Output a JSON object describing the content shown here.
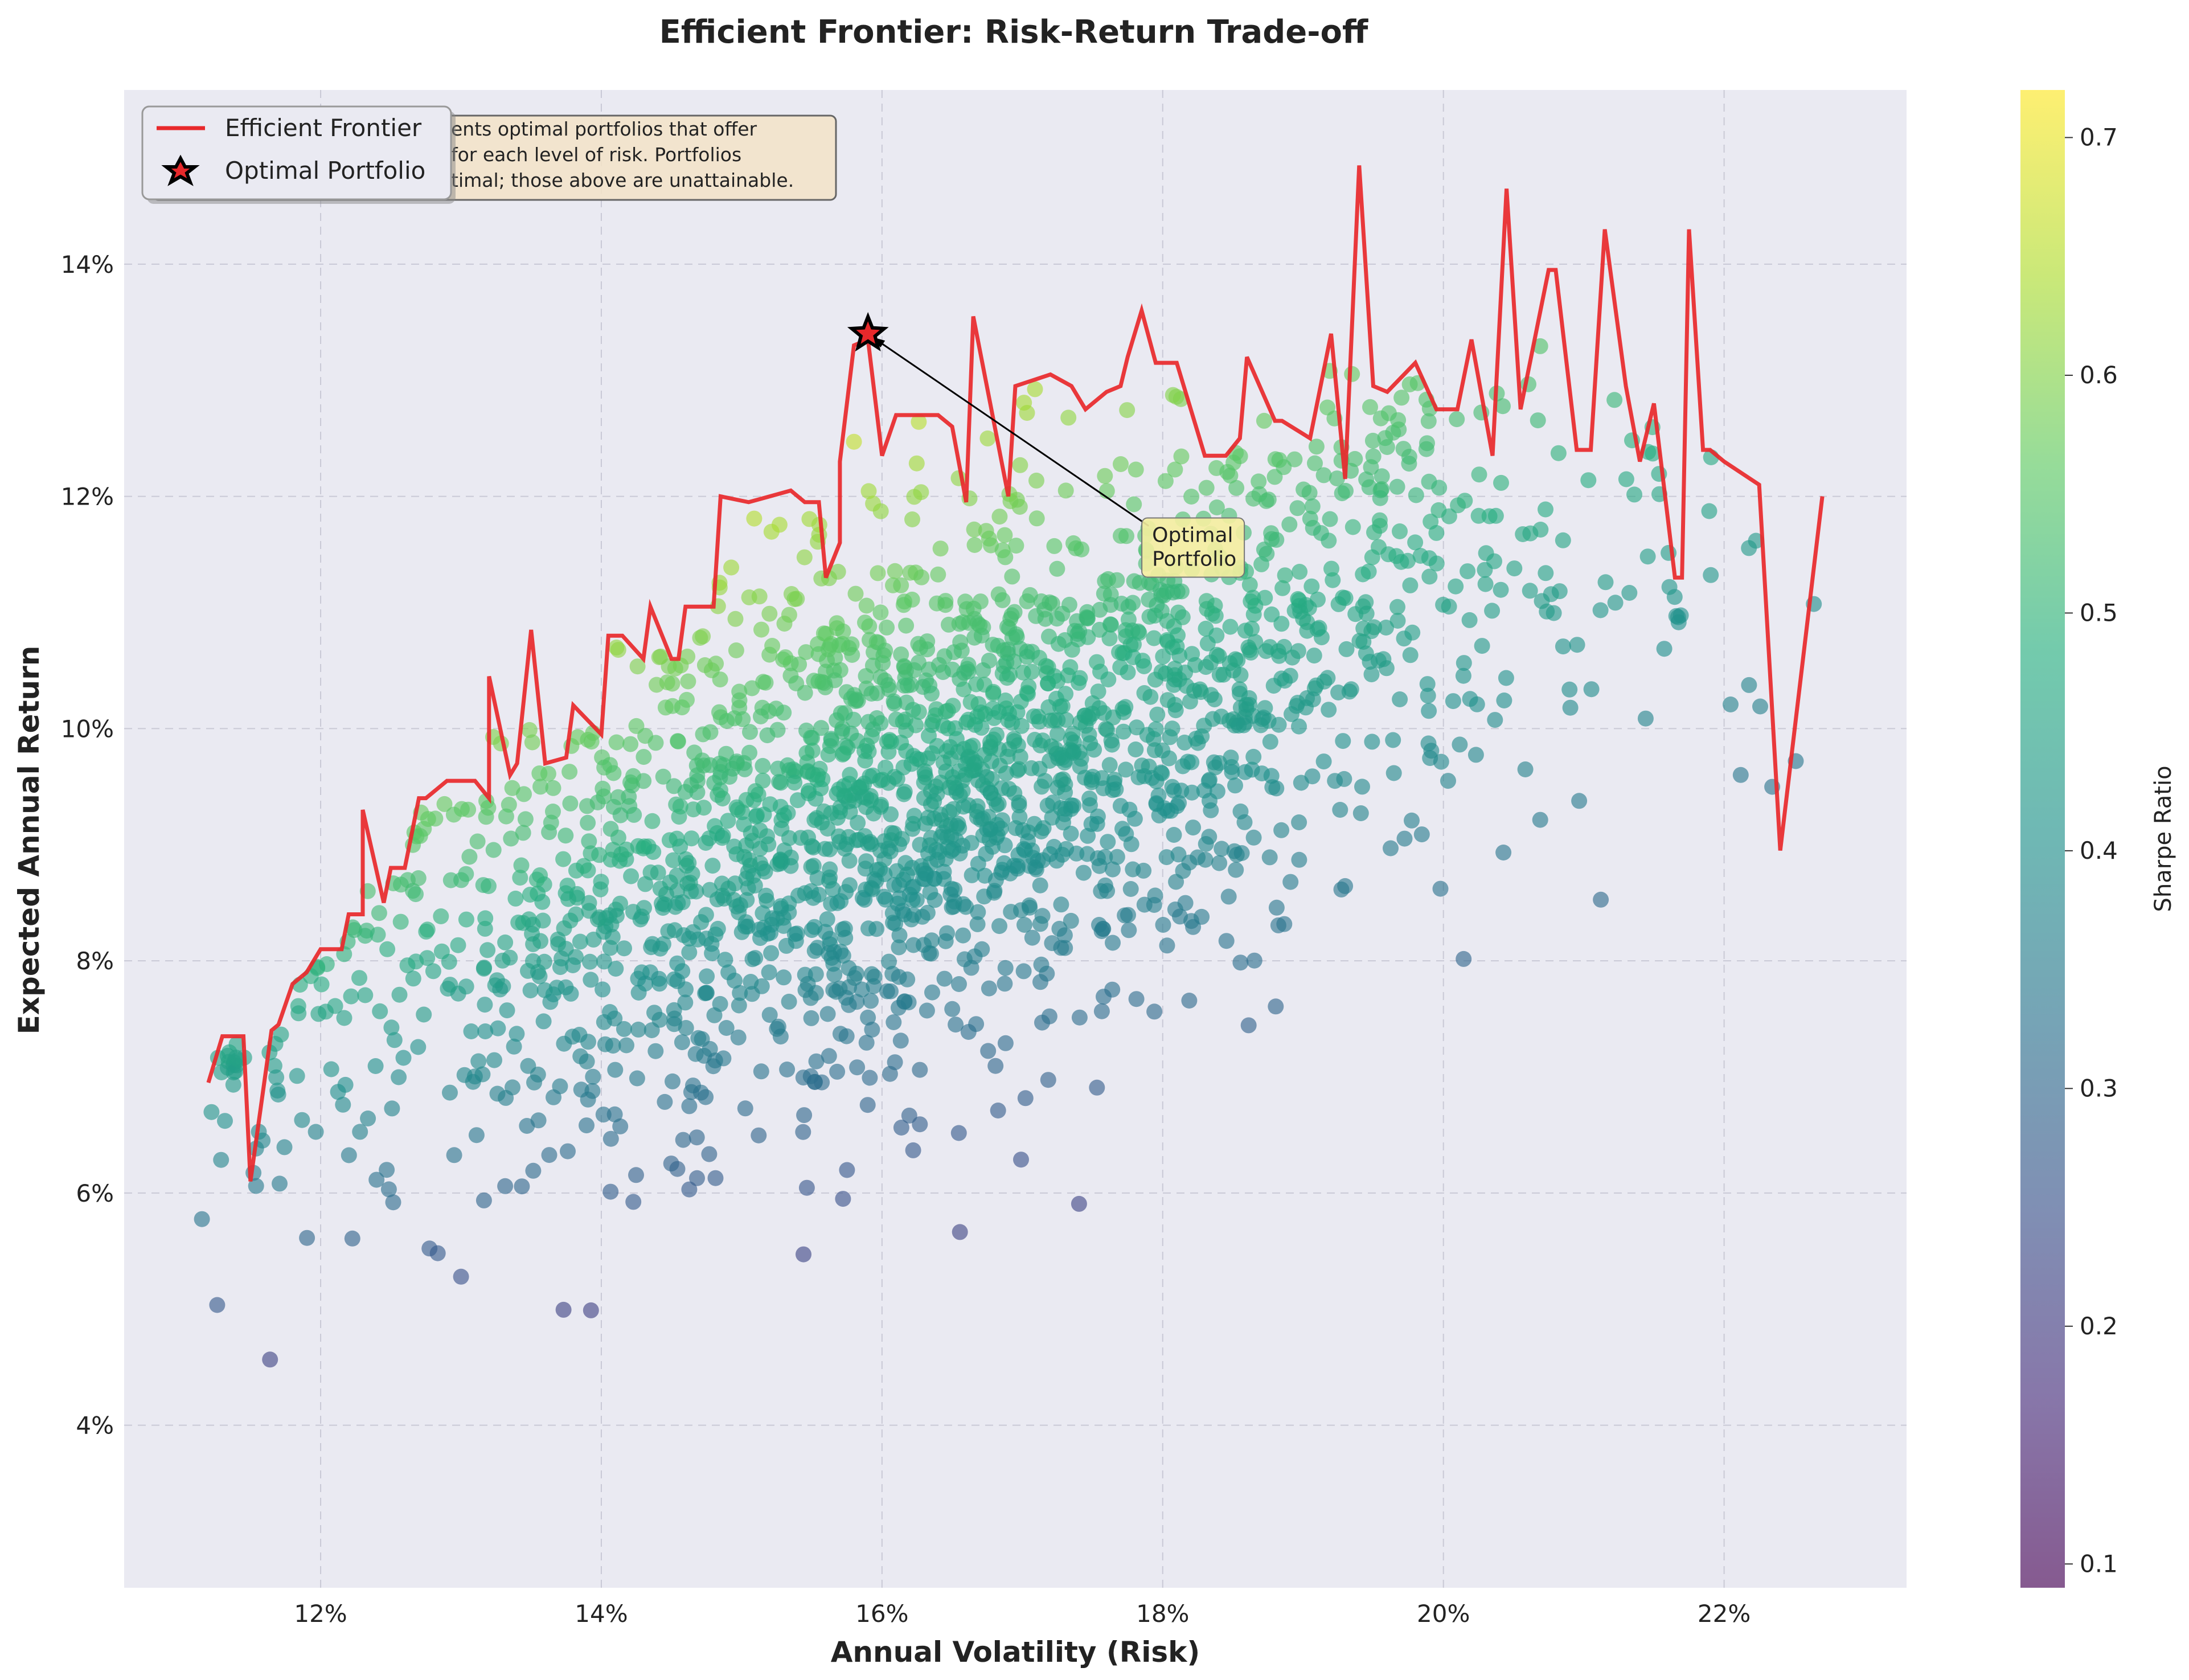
{
  "chart_data": {
    "type": "scatter",
    "title": "Efficient Frontier: Risk-Return Trade-off",
    "xlabel": "Annual Volatility (Risk)",
    "ylabel": "Expected Annual Return",
    "xlim": [
      10.6,
      23.3
    ],
    "ylim": [
      2.6,
      15.5
    ],
    "x_ticks": [
      "12%",
      "14%",
      "16%",
      "18%",
      "20%",
      "22%"
    ],
    "y_ticks": [
      "4%",
      "6%",
      "8%",
      "10%",
      "12%",
      "14%"
    ],
    "x_tick_values": [
      12,
      14,
      16,
      18,
      20,
      22
    ],
    "y_tick_values": [
      4,
      6,
      8,
      10,
      12,
      14
    ],
    "grid": true,
    "colorbar": {
      "label": "Sharpe Ratio",
      "range": [
        0.09,
        0.72
      ],
      "ticks": [
        "0.1",
        "0.2",
        "0.3",
        "0.4",
        "0.5",
        "0.6",
        "0.7"
      ],
      "tick_values": [
        0.1,
        0.2,
        0.3,
        0.4,
        0.5,
        0.6,
        0.7
      ],
      "colormap": "viridis"
    },
    "legend": {
      "placement": "top-left",
      "entries": [
        {
          "label": "Efficient Frontier",
          "color": "#e8282b",
          "marker": "line"
        },
        {
          "label": "Optimal Portfolio",
          "color": "#e8282b",
          "marker": "star"
        }
      ]
    },
    "info_box": {
      "lines": [
        "ents optimal portfolios that offer",
        "for each level of risk. Portfolios",
        "timal; those above are unattainable."
      ]
    },
    "annotation": {
      "lines": [
        "Optimal",
        "Portfolio"
      ],
      "target": [
        15.9,
        13.4
      ],
      "text_at": [
        17.9,
        11.5
      ]
    },
    "optimal_portfolio": {
      "volatility": 15.9,
      "return": 13.4
    },
    "series": [
      {
        "name": "Efficient Frontier",
        "type": "line",
        "color": "#e8282b",
        "x": [
          11.2,
          11.3,
          11.45,
          11.5,
          11.65,
          11.7,
          11.8,
          11.9,
          12.0,
          12.05,
          12.15,
          12.2,
          12.3,
          12.3,
          12.45,
          12.5,
          12.6,
          12.7,
          12.75,
          12.9,
          13.1,
          13.2,
          13.2,
          13.35,
          13.4,
          13.5,
          13.6,
          13.75,
          13.8,
          14.0,
          14.05,
          14.15,
          14.3,
          14.35,
          14.5,
          14.55,
          14.6,
          14.8,
          14.85,
          15.05,
          15.2,
          15.35,
          15.45,
          15.55,
          15.6,
          15.7,
          15.7,
          15.8,
          15.9,
          16.0,
          16.1,
          16.4,
          16.5,
          16.6,
          16.65,
          16.9,
          16.95,
          17.2,
          17.35,
          17.45,
          17.6,
          17.7,
          17.75,
          17.85,
          17.95,
          18.1,
          18.3,
          18.45,
          18.55,
          18.6,
          18.8,
          18.85,
          19.05,
          19.2,
          19.3,
          19.4,
          19.5,
          19.6,
          19.8,
          19.95,
          20.1,
          20.2,
          20.35,
          20.45,
          20.55,
          20.75,
          20.8,
          20.95,
          21.05,
          21.15,
          21.3,
          21.4,
          21.5,
          21.65,
          21.7,
          21.75,
          21.85,
          21.9,
          22.0,
          22.25,
          22.4,
          22.7
        ],
        "y": [
          6.95,
          7.35,
          7.35,
          6.1,
          7.4,
          7.45,
          7.8,
          7.9,
          8.1,
          8.1,
          8.1,
          8.4,
          8.4,
          9.3,
          8.5,
          8.8,
          8.8,
          9.4,
          9.4,
          9.55,
          9.55,
          9.4,
          10.45,
          9.6,
          9.7,
          10.85,
          9.7,
          9.75,
          10.2,
          9.95,
          10.8,
          10.8,
          10.6,
          11.05,
          10.6,
          10.6,
          11.05,
          11.05,
          12.0,
          11.95,
          12.0,
          12.05,
          11.95,
          11.95,
          11.3,
          11.6,
          12.3,
          13.3,
          13.35,
          12.35,
          12.7,
          12.7,
          12.6,
          11.95,
          13.55,
          12.0,
          12.95,
          13.05,
          12.95,
          12.75,
          12.9,
          12.95,
          13.2,
          13.6,
          13.15,
          13.15,
          12.35,
          12.35,
          12.5,
          13.2,
          12.65,
          12.65,
          12.5,
          13.4,
          12.15,
          14.85,
          12.95,
          12.9,
          13.15,
          12.75,
          12.75,
          13.35,
          12.35,
          14.65,
          12.75,
          13.95,
          13.95,
          12.4,
          12.4,
          14.3,
          12.95,
          12.3,
          12.8,
          11.3,
          11.3,
          14.3,
          12.4,
          12.4,
          12.3,
          12.1,
          8.95,
          12.0
        ]
      },
      {
        "name": "Portfolios",
        "type": "scatter",
        "count": 2200,
        "color_by": "Sharpe Ratio"
      }
    ]
  }
}
